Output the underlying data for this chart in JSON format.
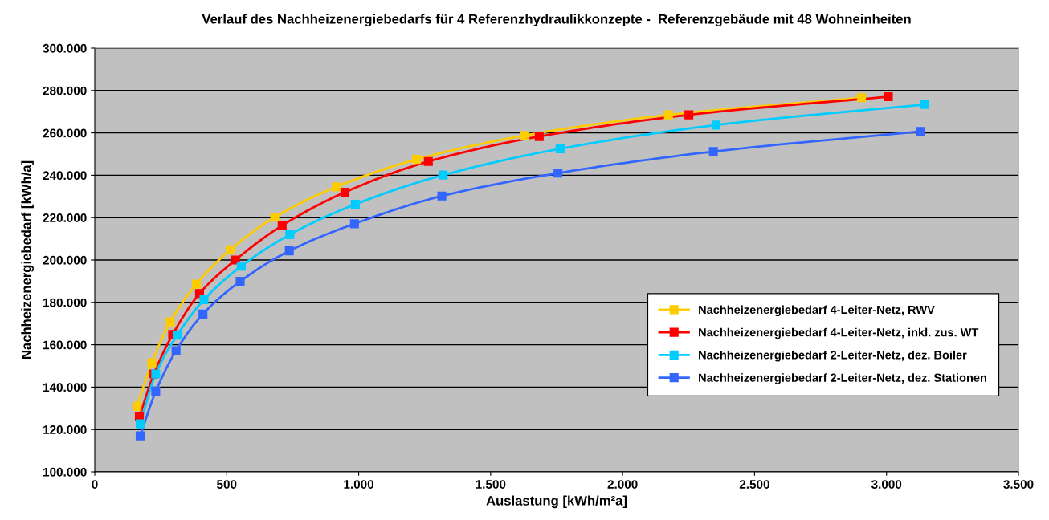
{
  "chart_data": {
    "type": "line",
    "title": "Verlauf des Nachheizenergiebedarfs für 4 Referenzhydraulikkonzepte -  Referenzgebäude mit 48 Wohneinheiten",
    "xlabel": "Auslastung [kWh/m²a]",
    "ylabel": "Nachheizenergiebedarf [kWh/a]",
    "series": [
      {
        "name": "Nachheizenergiebedarf 4-Leiter-Netz, RWV",
        "color": "#ffcc00",
        "x": [
          160,
          216,
          286,
          385,
          513,
          682,
          915,
          1219,
          1630,
          2174,
          2905
        ],
        "values": [
          130900,
          151500,
          170800,
          188600,
          204800,
          220200,
          234500,
          247500,
          258800,
          268500,
          276600
        ]
      },
      {
        "name": "Nachheizenergiebedarf 4-Leiter-Netz, inkl. zus. WT",
        "color": "#ff0000",
        "x": [
          169,
          224,
          295,
          397,
          533,
          710,
          948,
          1264,
          1684,
          2251,
          3007
        ],
        "values": [
          126000,
          146200,
          164800,
          184200,
          200000,
          216300,
          232000,
          246500,
          258300,
          268500,
          277100
        ]
      },
      {
        "name": "Nachheizenergiebedarf 2-Leiter-Netz, dez. Boiler",
        "color": "#00ccff",
        "x": [
          172,
          231,
          312,
          414,
          555,
          739,
          987,
          1320,
          1763,
          2354,
          3144
        ],
        "values": [
          122700,
          146200,
          164500,
          181300,
          197100,
          212000,
          226300,
          240100,
          252500,
          263700,
          273400
        ]
      },
      {
        "name": "Nachheizenergiebedarf 2-Leiter-Netz, dez. Stationen",
        "color": "#3366ff",
        "x": [
          172,
          231,
          308,
          410,
          551,
          737,
          984,
          1315,
          1755,
          2344,
          3129
        ],
        "values": [
          117000,
          138000,
          157200,
          174500,
          189900,
          204300,
          217100,
          230200,
          241000,
          251200,
          260700
        ]
      }
    ],
    "xlim": [
      0,
      3500
    ],
    "xticks": [
      0,
      500,
      {
        "value": 1000,
        "label": "1.000"
      },
      {
        "value": 1500,
        "label": "1.500"
      },
      {
        "value": 2000,
        "label": "2.000"
      },
      {
        "value": 2500,
        "label": "2.500"
      },
      {
        "value": 3000,
        "label": "3.000"
      },
      {
        "value": 3500,
        "label": "3.500"
      }
    ],
    "ylim": [
      100000,
      300000
    ],
    "yticks": [
      {
        "value": 100000,
        "label": "100.000"
      },
      {
        "value": 120000,
        "label": "120.000"
      },
      {
        "value": 140000,
        "label": "140.000"
      },
      {
        "value": 160000,
        "label": "160.000"
      },
      {
        "value": 180000,
        "label": "180.000"
      },
      {
        "value": 200000,
        "label": "200.000"
      },
      {
        "value": 220000,
        "label": "220.000"
      },
      {
        "value": 240000,
        "label": "240.000"
      },
      {
        "value": 260000,
        "label": "260.000"
      },
      {
        "value": 280000,
        "label": "280.000"
      },
      {
        "value": 300000,
        "label": "300.000"
      }
    ],
    "grid": "y",
    "legend": "right",
    "marker": "square",
    "line_style": "solid"
  }
}
